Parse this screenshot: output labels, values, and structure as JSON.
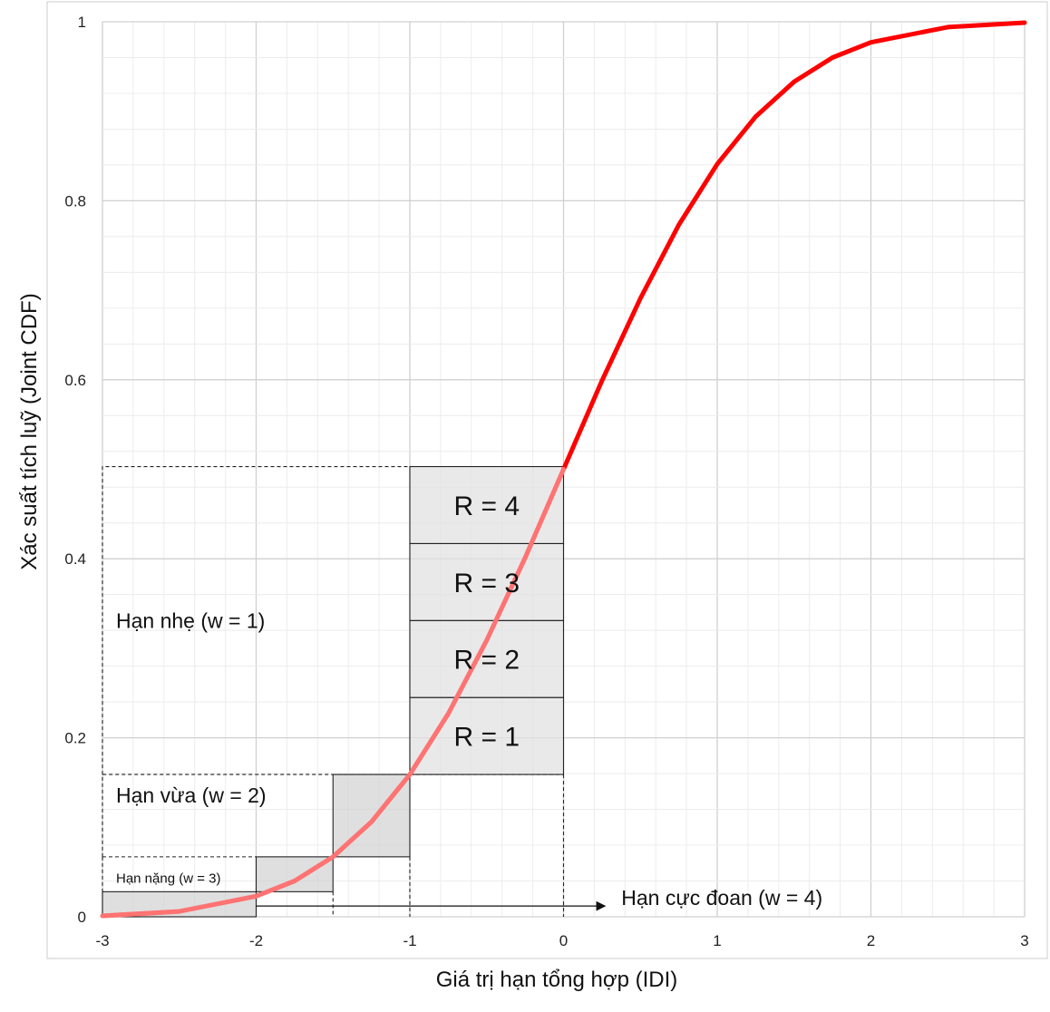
{
  "chart_data": {
    "type": "line",
    "xlabel": "Giá trị hạn tổng hợp (IDI)",
    "ylabel": "Xác suất tích luỹ (Joint CDF)",
    "xlim": [
      -3,
      3
    ],
    "ylim": [
      0,
      1
    ],
    "x_ticks": [
      "-3",
      "-2",
      "-1",
      "0",
      "1",
      "2",
      "3"
    ],
    "y_ticks": [
      "0",
      "0.2",
      "0.4",
      "0.6",
      "0.8",
      "1"
    ],
    "grid": true,
    "series": [
      {
        "color": "#ff0000",
        "x": [
          -3.0,
          -2.5,
          -2.0,
          -1.75,
          -1.5,
          -1.25,
          -1.0,
          -0.75,
          -0.5,
          -0.25,
          0.0,
          0.25,
          0.5,
          0.75,
          1.0,
          1.25,
          1.5,
          1.75,
          2.0,
          2.5,
          3.0
        ],
        "y": [
          0.001,
          0.006,
          0.023,
          0.04,
          0.067,
          0.106,
          0.159,
          0.227,
          0.309,
          0.401,
          0.5,
          0.599,
          0.691,
          0.773,
          0.841,
          0.894,
          0.933,
          0.96,
          0.977,
          0.994,
          0.999
        ]
      }
    ],
    "rank_boxes": [
      {
        "label": "R = 1",
        "x0": -1,
        "x1": 0,
        "y0": 0.159,
        "y1": 0.245
      },
      {
        "label": "R = 2",
        "x0": -1,
        "x1": 0,
        "y0": 0.245,
        "y1": 0.331
      },
      {
        "label": "R = 3",
        "x0": -1,
        "x1": 0,
        "y0": 0.331,
        "y1": 0.417
      },
      {
        "label": "R = 4",
        "x0": -1,
        "x1": 0,
        "y0": 0.417,
        "y1": 0.503
      }
    ],
    "steps": [
      {
        "x0": -3,
        "x1": -2,
        "y0": 0,
        "y1": 0.028
      },
      {
        "x0": -2,
        "x1": -1.5,
        "y0": 0.028,
        "y1": 0.067
      },
      {
        "x0": -1.5,
        "x1": -1,
        "y0": 0.067,
        "y1": 0.159
      }
    ],
    "zones": [
      {
        "label": "Hạn nhẹ (w = 1)",
        "x0": -3,
        "x1": -1,
        "y0": 0.159,
        "y1": 0.503
      },
      {
        "label": "Hạn vừa (w = 2)",
        "x0": -3,
        "x1": 0,
        "y0": 0.067,
        "y1": 0.159
      },
      {
        "label": "Hạn nặng (w = 3)",
        "x0": -3,
        "x1": 0,
        "y0": 0.028,
        "y1": 0.067
      }
    ],
    "arrow": {
      "label": "Hạn cực đoan (w = 4)",
      "x0": -2,
      "x1": 0.27,
      "y": 0.012
    }
  }
}
